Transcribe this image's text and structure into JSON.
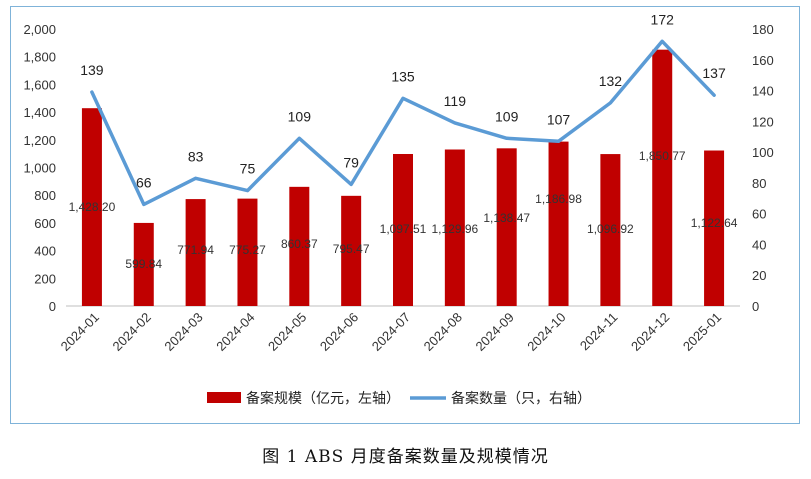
{
  "caption": "图 1   ABS 月度备案数量及规模情况",
  "chart_data": {
    "type": "bar",
    "categories": [
      "2024-01",
      "2024-02",
      "2024-03",
      "2024-04",
      "2024-05",
      "2024-06",
      "2024-07",
      "2024-08",
      "2024-09",
      "2024-10",
      "2024-11",
      "2024-12",
      "2025-01"
    ],
    "series": [
      {
        "name": "备案规模（亿元，左轴）",
        "type": "bar",
        "axis": "left",
        "color": "#c00000",
        "values": [
          1428.2,
          599.84,
          771.94,
          775.27,
          860.37,
          795.47,
          1097.51,
          1129.96,
          1138.47,
          1186.98,
          1096.92,
          1850.77,
          1122.64
        ],
        "labels": [
          "1,428.20",
          "599.84",
          "771.94",
          "775.27",
          "860.37",
          "795.47",
          "1,097.51",
          "1,129.96",
          "1,138.47",
          "1,186.98",
          "1,096.92",
          "1,850.77",
          "1,122.64"
        ]
      },
      {
        "name": "备案数量（只，右轴）",
        "type": "line",
        "axis": "right",
        "color": "#5b9bd5",
        "values": [
          139,
          66,
          83,
          75,
          109,
          79,
          135,
          119,
          109,
          107,
          132,
          172,
          137
        ]
      }
    ],
    "left_axis": {
      "ylim": [
        0,
        2000
      ],
      "ticks": [
        "0",
        "200",
        "400",
        "600",
        "800",
        "1,000",
        "1,200",
        "1,400",
        "1,600",
        "1,800",
        "2,000"
      ]
    },
    "right_axis": {
      "ylim": [
        0,
        180
      ],
      "ticks": [
        "0",
        "20",
        "40",
        "60",
        "80",
        "100",
        "120",
        "140",
        "160",
        "180"
      ]
    },
    "grid": false,
    "legend_position": "bottom"
  }
}
